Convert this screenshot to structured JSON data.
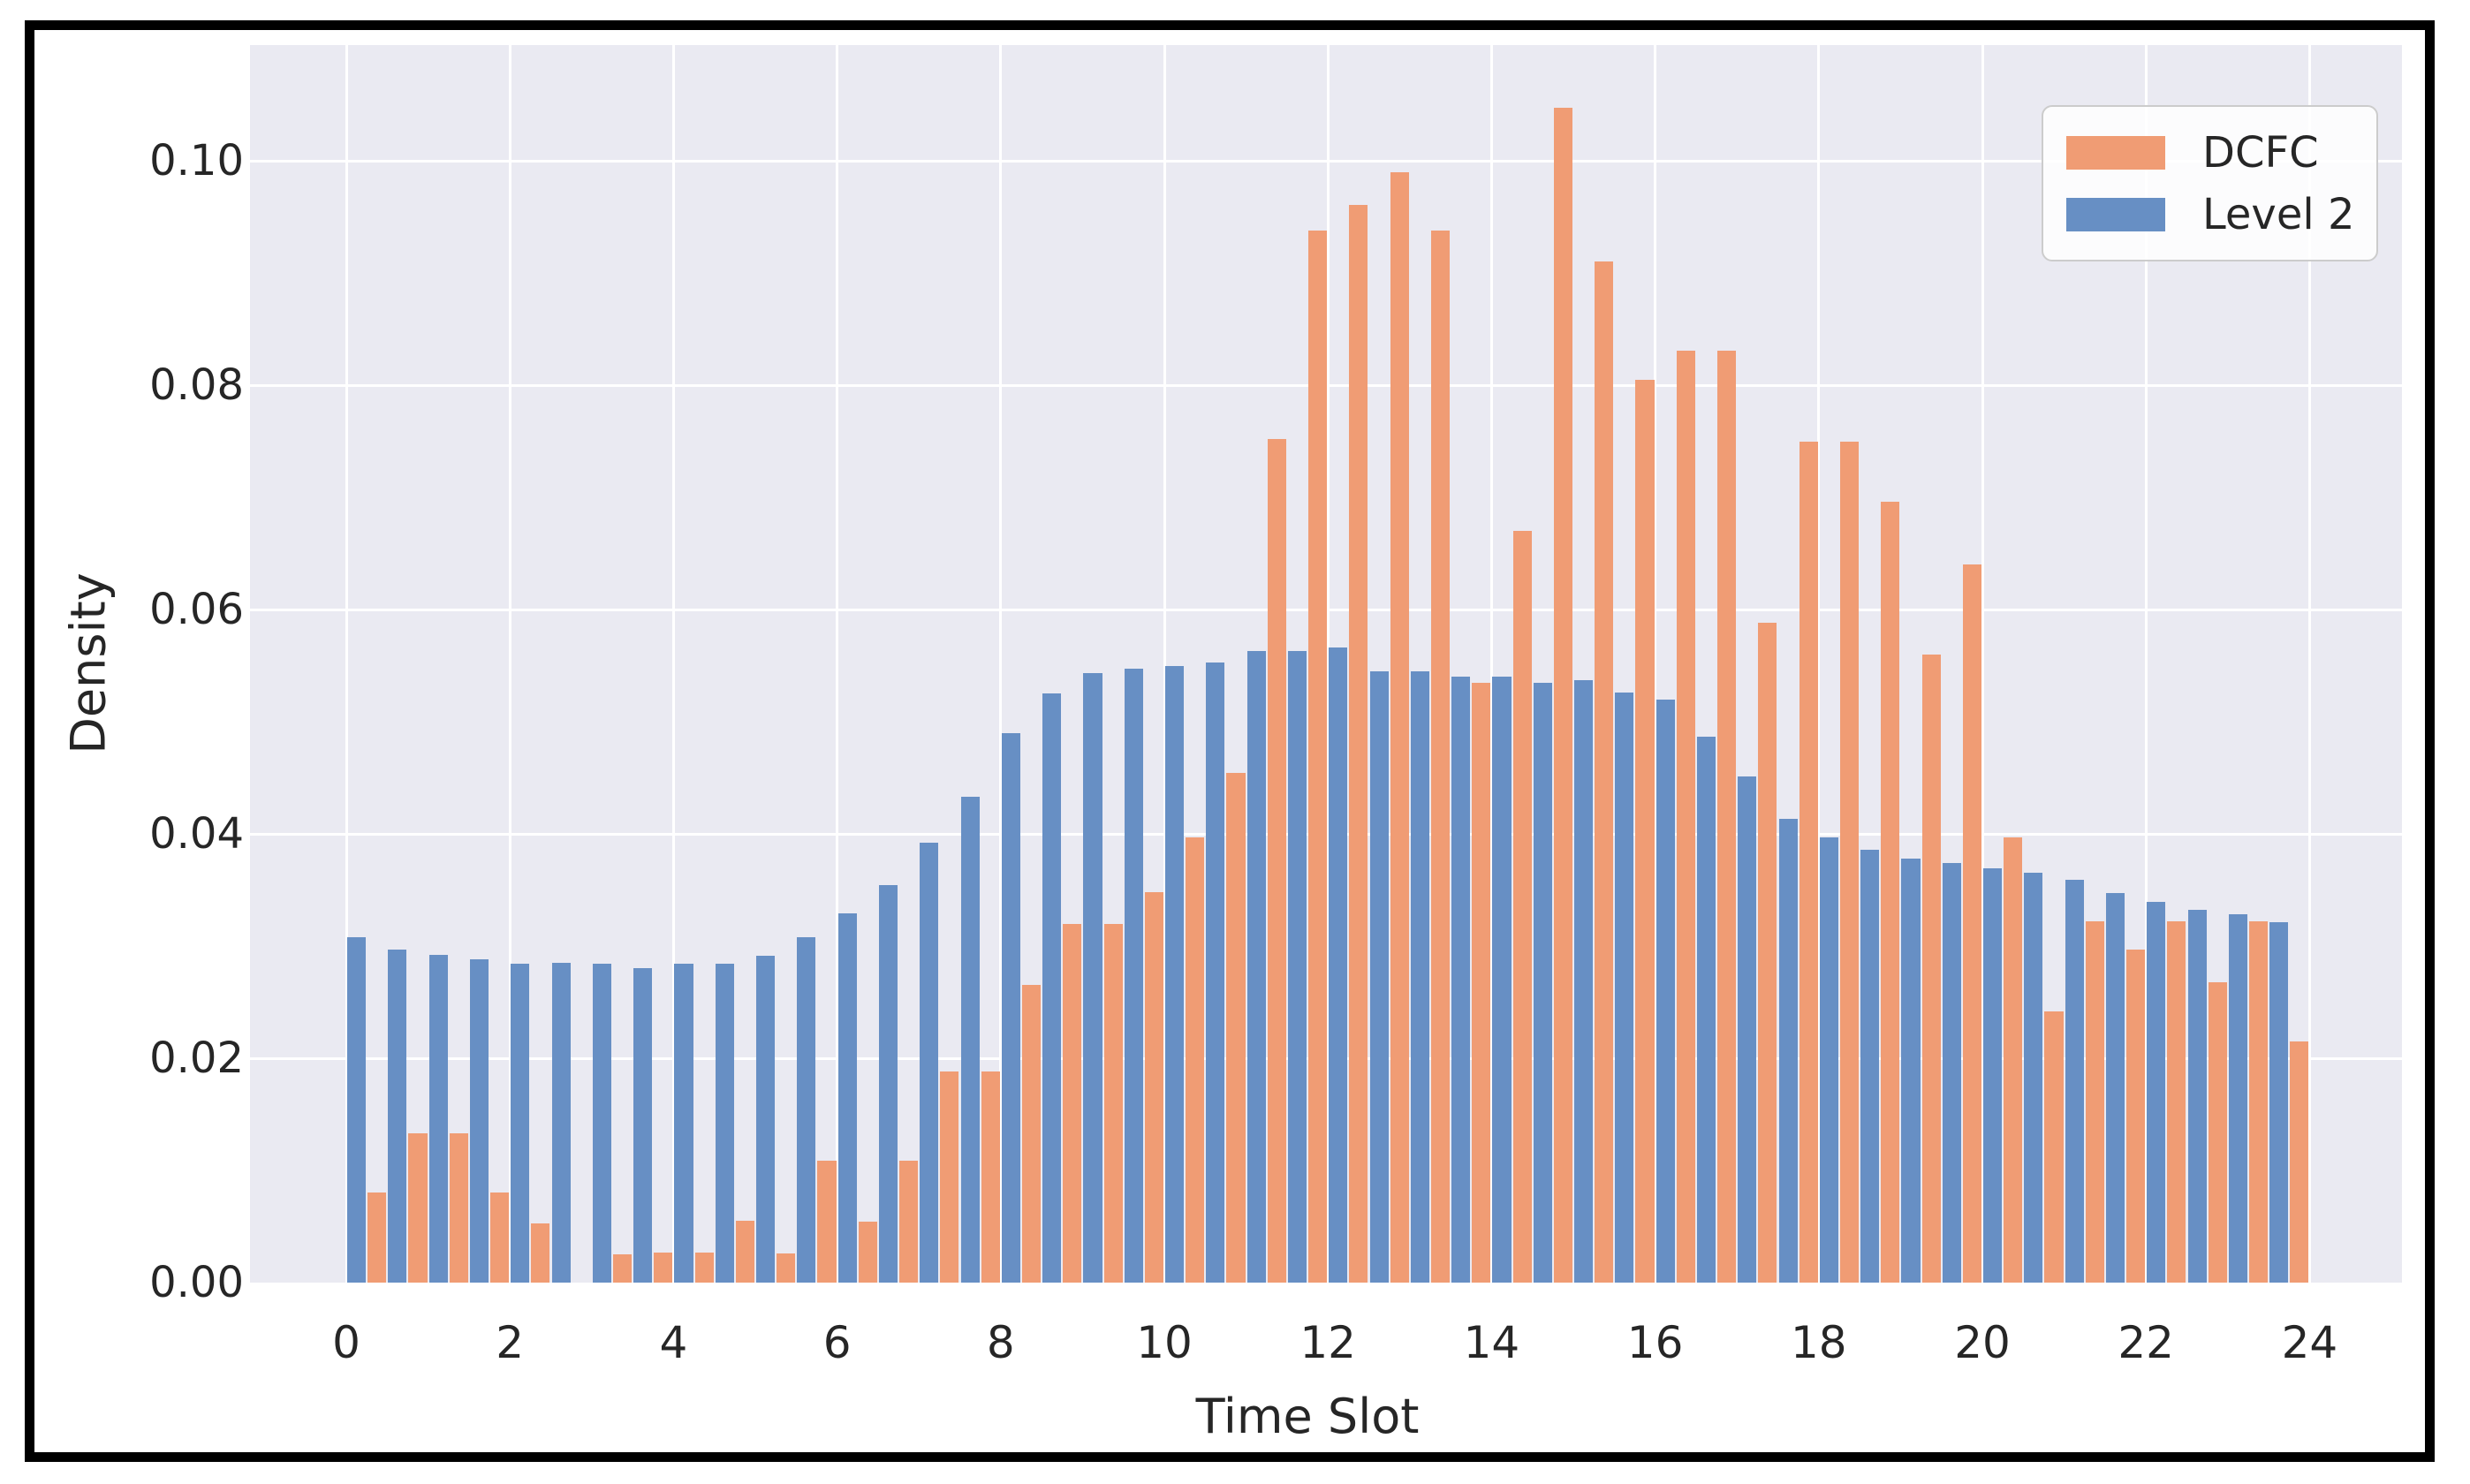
{
  "figure": {
    "xlabel": "Time Slot",
    "ylabel": "Density",
    "frame_color": "#000000",
    "figure_background": "#ffffff"
  },
  "legend": {
    "position": "top-right",
    "items": [
      {
        "label": "DCFC",
        "color": "#f09c74"
      },
      {
        "label": "Level 2",
        "color": "#678fc4"
      }
    ]
  },
  "chart_data": {
    "type": "bar",
    "subtype": "grouped-histogram",
    "title": "",
    "xlabel": "Time Slot",
    "ylabel": "Density",
    "plot_background": "#eaeaf2",
    "grid_color": "#ffffff",
    "grid": true,
    "xlim": [
      -1.2,
      25.2
    ],
    "ylim": [
      0,
      0.11
    ],
    "x_ticks": [
      0,
      2,
      4,
      6,
      8,
      10,
      12,
      14,
      16,
      18,
      20,
      22,
      24
    ],
    "y_ticks": [
      0.0,
      0.02,
      0.04,
      0.06,
      0.08,
      0.1
    ],
    "y_tick_labels": [
      "0.00",
      "0.02",
      "0.04",
      "0.06",
      "0.08",
      "0.10"
    ],
    "bin_width": 0.5,
    "dodge_order_within_bin": [
      "Level 2",
      "DCFC"
    ],
    "bin_starts": [
      0,
      0.5,
      1,
      1.5,
      2,
      2.5,
      3,
      3.5,
      4,
      4.5,
      5,
      5.5,
      6,
      6.5,
      7,
      7.5,
      8,
      8.5,
      9,
      9.5,
      10,
      10.5,
      11,
      11.5,
      12,
      12.5,
      13,
      13.5,
      14,
      14.5,
      15,
      15.5,
      16,
      16.5,
      17,
      17.5,
      18,
      18.5,
      19,
      19.5,
      20,
      20.5,
      21,
      21.5,
      22,
      22.5,
      23,
      23.5
    ],
    "series": [
      {
        "name": "Level 2",
        "color": "#678fc4",
        "values": [
          0.0308,
          0.0297,
          0.0292,
          0.0288,
          0.0284,
          0.0285,
          0.0284,
          0.028,
          0.0284,
          0.0284,
          0.0291,
          0.0308,
          0.0329,
          0.0354,
          0.0392,
          0.0433,
          0.049,
          0.0525,
          0.0543,
          0.0547,
          0.055,
          0.0553,
          0.0563,
          0.0563,
          0.0566,
          0.0545,
          0.0545,
          0.054,
          0.054,
          0.0535,
          0.0537,
          0.0526,
          0.052,
          0.0487,
          0.0451,
          0.0413,
          0.0397,
          0.0386,
          0.0378,
          0.0374,
          0.0369,
          0.0365,
          0.0359,
          0.0347,
          0.0339,
          0.0332,
          0.0328,
          0.0321
        ]
      },
      {
        "name": "DCFC",
        "color": "#f09c74",
        "values": [
          0.008,
          0.0133,
          0.0133,
          0.008,
          0.0053,
          0.0,
          0.0025,
          0.0027,
          0.0027,
          0.0055,
          0.0026,
          0.0109,
          0.0054,
          0.0109,
          0.0188,
          0.0188,
          0.0265,
          0.032,
          0.032,
          0.0348,
          0.0397,
          0.0454,
          0.0752,
          0.0938,
          0.0961,
          0.099,
          0.0938,
          0.0535,
          0.067,
          0.1047,
          0.091,
          0.0805,
          0.0831,
          0.0831,
          0.0588,
          0.075,
          0.075,
          0.0696,
          0.056,
          0.064,
          0.0397,
          0.0242,
          0.0322,
          0.0297,
          0.0322,
          0.0268,
          0.0322,
          0.0215
        ]
      }
    ]
  }
}
